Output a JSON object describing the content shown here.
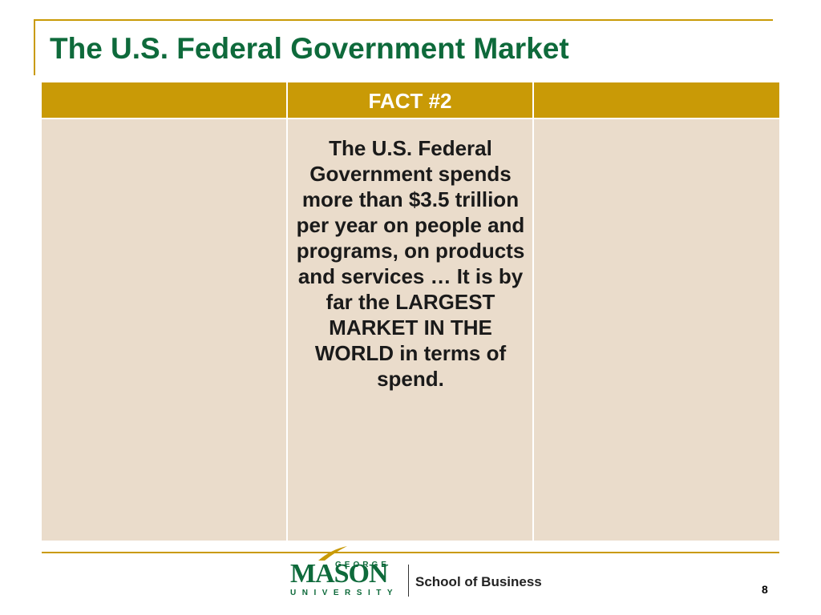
{
  "slide": {
    "title": "The U.S. Federal Government Market",
    "table": {
      "header": "FACT #2",
      "body": "The U.S. Federal Government spends more than $3.5 trillion per year on people and programs, on products and services … It is by far the LARGEST MARKET IN THE WORLD in terms of spend."
    },
    "footer": {
      "logo": {
        "line1": "GEORGE",
        "line2": "MASON",
        "line3": "UNIVERSITY"
      },
      "school": "School of Business",
      "page_number": 8
    }
  }
}
